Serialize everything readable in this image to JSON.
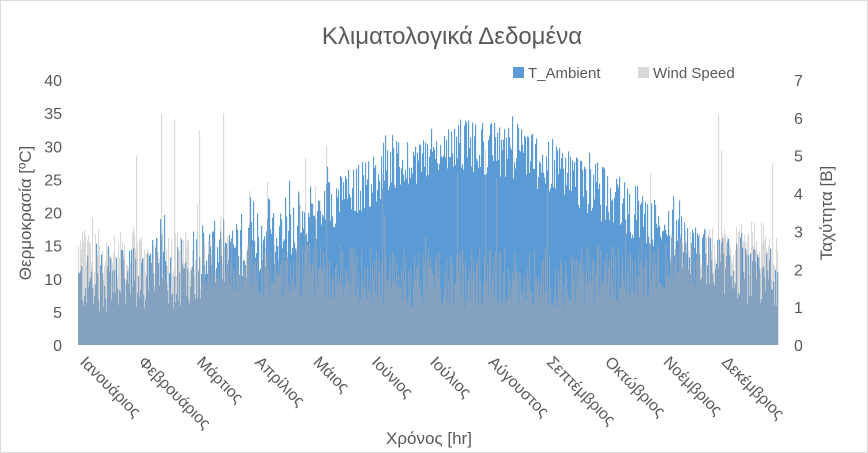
{
  "chart_data": {
    "type": "area",
    "title": "Κλιματολογικά Δεδομένα",
    "xlabel": "Χρόνος [hr]",
    "ylabel_left": "Θερμοκρασία [ºC]",
    "ylabel_right": "Ταχύτητα [Β]",
    "ylim_left": [
      0,
      40
    ],
    "ylim_right": [
      0,
      7
    ],
    "yticks_left": [
      "0",
      "5",
      "10",
      "15",
      "20",
      "25",
      "30",
      "35",
      "40"
    ],
    "yticks_right": [
      "0",
      "1",
      "2",
      "3",
      "4",
      "5",
      "6",
      "7"
    ],
    "grid": false,
    "legend_position": "top-right",
    "categories": [
      "Ιανουάριος",
      "Φεβρουάριος",
      "Μάρτιος",
      "Απρίλιος",
      "Μάιος",
      "Ιούνιος",
      "Ιούλιος",
      "Αύγουστος",
      "Σεπτέμβριος",
      "Οκτώβριος",
      "Νοέμβριος",
      "Δεκέμβριος"
    ],
    "x_unit_hours": 8760,
    "series": [
      {
        "name": "T_Ambient",
        "axis": "left",
        "color": "#5b9bd5",
        "monthly_typical": [
          8,
          9,
          12,
          16,
          21,
          26,
          29,
          28,
          24,
          19,
          13,
          9
        ],
        "monthly_peak": [
          16,
          20,
          22,
          25,
          28,
          33,
          36,
          36,
          32,
          27,
          21,
          17
        ]
      },
      {
        "name": "Wind Speed",
        "axis": "right",
        "color": "#d9d9d9",
        "monthly_typical": [
          2.3,
          2.2,
          2.1,
          1.9,
          1.8,
          1.7,
          1.7,
          1.7,
          1.7,
          1.9,
          2.2,
          2.4
        ],
        "monthly_peak": [
          6.5,
          6.4,
          6.3,
          6.4,
          5.2,
          5.3,
          5.5,
          5.8,
          5.4,
          5.2,
          6.0,
          6.5
        ]
      }
    ]
  }
}
